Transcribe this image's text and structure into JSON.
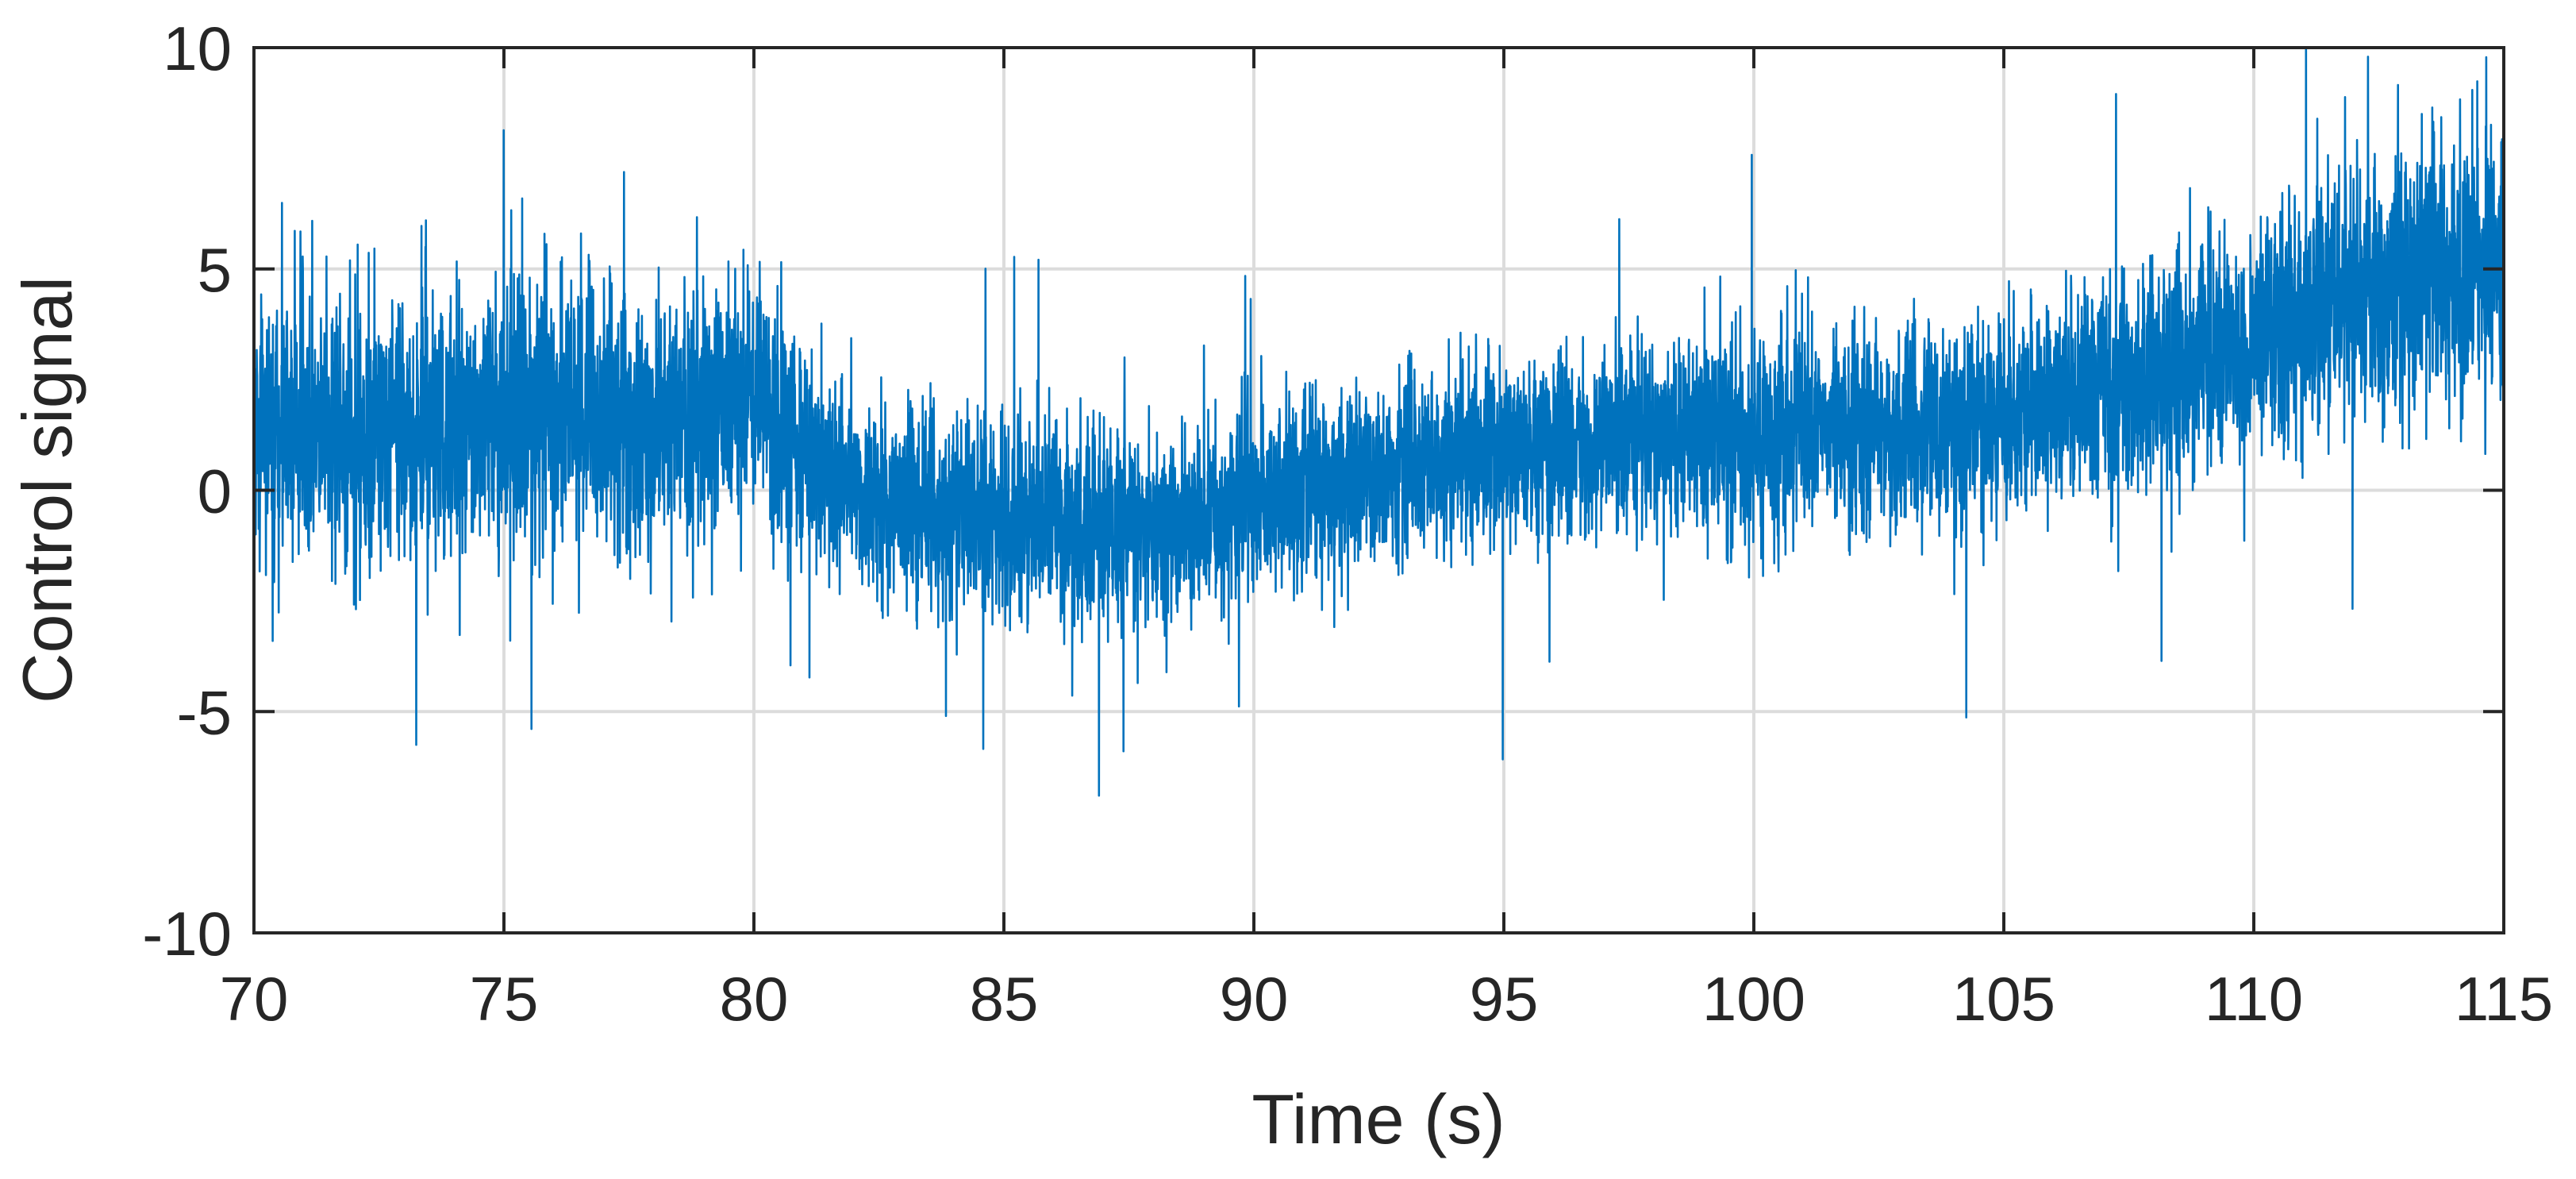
{
  "chart_data": {
    "type": "line",
    "title": "",
    "xlabel": "Time (s)",
    "ylabel": "Control signal",
    "xlim": [
      70,
      115
    ],
    "ylim": [
      -10,
      10
    ],
    "xticks": [
      70,
      75,
      80,
      85,
      90,
      95,
      100,
      105,
      110,
      115
    ],
    "yticks": [
      -10,
      -5,
      0,
      5,
      10
    ],
    "xtick_labels": [
      "70",
      "75",
      "80",
      "85",
      "90",
      "95",
      "100",
      "105",
      "110",
      "115"
    ],
    "ytick_labels": [
      "-10",
      "-5",
      "0",
      "5",
      "10"
    ],
    "grid": true,
    "legend": "none",
    "line_color": "#0072BD",
    "grid_color": "#dcdcdc",
    "axis_color": "#262626",
    "series": [
      {
        "x": [
          70,
          72.5,
          75,
          77.5,
          80,
          82.5,
          85,
          87.5,
          88,
          90,
          92.5,
          95,
          97.5,
          100,
          102.5,
          105,
          107.5,
          110,
          112.5,
          115
        ],
        "trend": [
          1.3,
          1.3,
          1.5,
          1.7,
          1.9,
          -0.3,
          -0.6,
          -0.9,
          -1.0,
          -0.3,
          0.4,
          1.0,
          1.2,
          1.3,
          1.4,
          1.6,
          2.4,
          3.3,
          4.5,
          5.3
        ],
        "noise_std": [
          1.3,
          1.6,
          1.5,
          1.5,
          1.3,
          1.1,
          1.1,
          1.1,
          1.1,
          1.0,
          1.0,
          1.0,
          1.0,
          1.1,
          1.1,
          1.1,
          1.2,
          1.3,
          1.5,
          1.6
        ]
      }
    ]
  }
}
